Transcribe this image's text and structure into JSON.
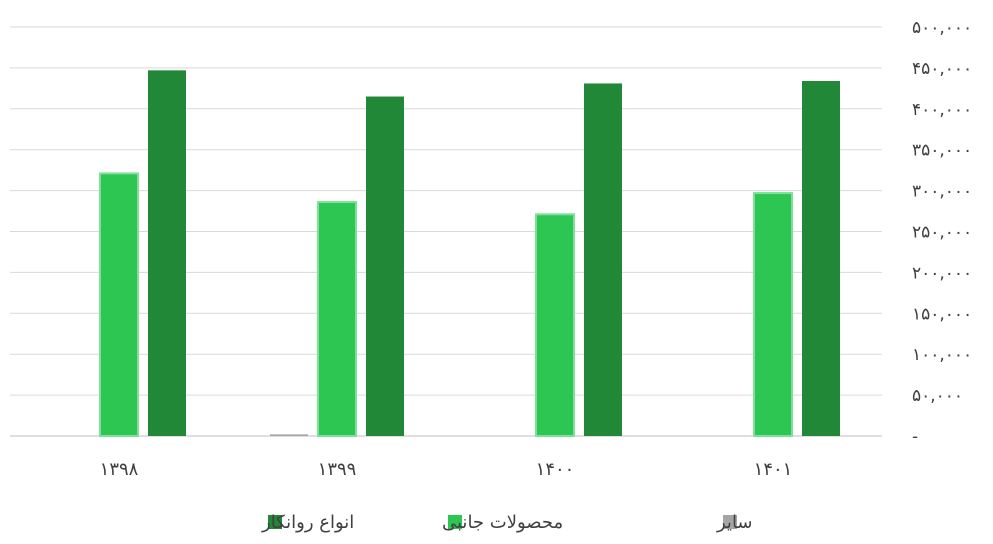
{
  "chart_data": {
    "type": "bar",
    "categories": [
      "۱۳۹۸",
      "۱۳۹۹",
      "۱۴۰۰",
      "۱۴۰۱"
    ],
    "series": [
      {
        "name": "سایر",
        "values": [
          0,
          2000,
          0,
          0
        ],
        "color": "#a5a5a5"
      },
      {
        "name": "محصولات جانبی",
        "values": [
          321000,
          286000,
          271000,
          297000
        ],
        "color": "#2dc653"
      },
      {
        "name": "انواع روانکار",
        "values": [
          447000,
          415000,
          431000,
          434000
        ],
        "color": "#218838"
      }
    ],
    "ylim": [
      0,
      500000
    ],
    "yticks": [
      0,
      50000,
      100000,
      150000,
      200000,
      250000,
      300000,
      350000,
      400000,
      450000,
      500000
    ],
    "ytick_labels": [
      "-",
      "۵۰,۰۰۰",
      "۱۰۰,۰۰۰",
      "۱۵۰,۰۰۰",
      "۲۰۰,۰۰۰",
      "۲۵۰,۰۰۰",
      "۳۰۰,۰۰۰",
      "۳۵۰,۰۰۰",
      "۴۰۰,۰۰۰",
      "۴۵۰,۰۰۰",
      "۵۰۰,۰۰۰"
    ],
    "yaxis_side": "right",
    "grid": true,
    "legend_position": "bottom",
    "title": "",
    "xlabel": "",
    "ylabel": ""
  }
}
